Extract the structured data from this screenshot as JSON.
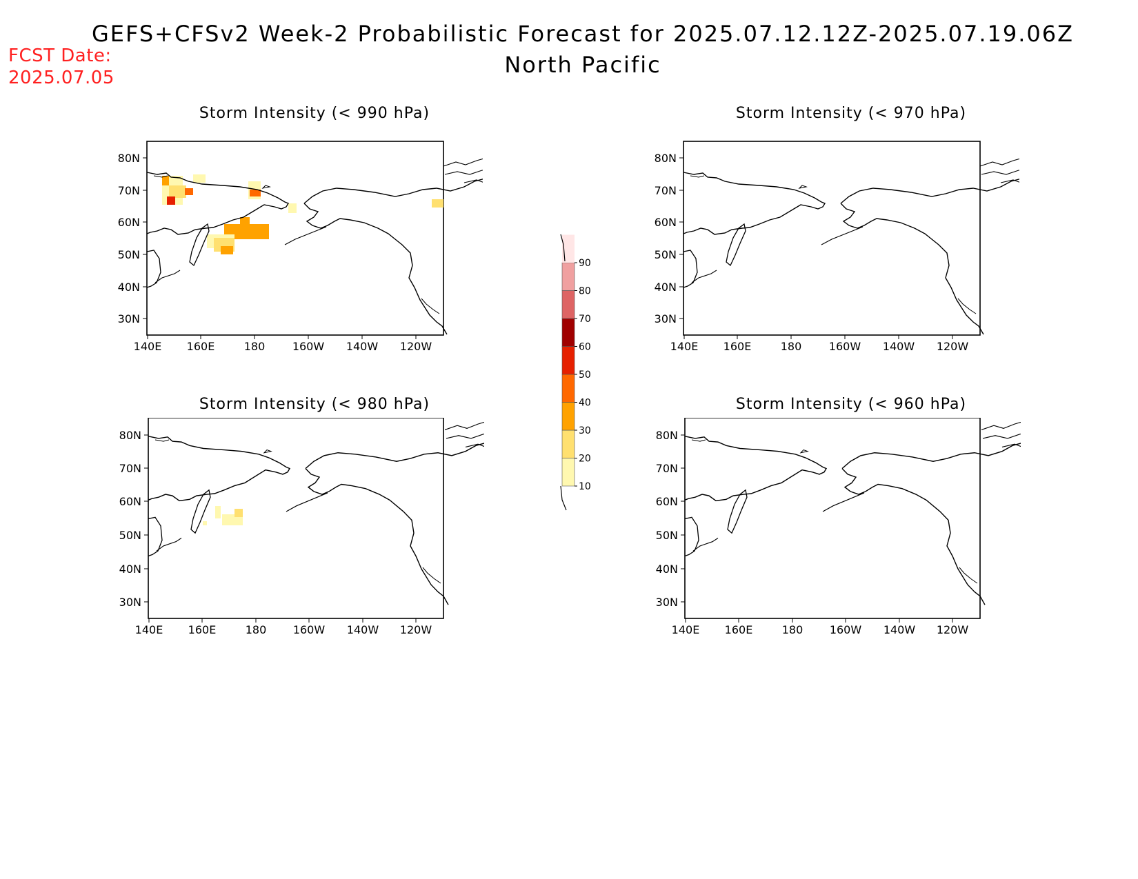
{
  "header": {
    "title": "GEFS+CFSv2 Week-2 Probabilistic Forecast for 2025.07.12.12Z-2025.07.19.06Z",
    "region": "North Pacific",
    "fcst_label": "FCST Date:",
    "fcst_date": "2025.07.05"
  },
  "axes": {
    "lat_ticks": [
      "80N",
      "70N",
      "60N",
      "50N",
      "40N",
      "30N"
    ],
    "lon_ticks": [
      "140E",
      "160E",
      "180",
      "160W",
      "140W",
      "120W"
    ]
  },
  "panels": [
    {
      "id": "p990",
      "title": "Storm Intensity (< 990 hPa)"
    },
    {
      "id": "p970",
      "title": "Storm Intensity (< 970 hPa)"
    },
    {
      "id": "p980",
      "title": "Storm Intensity (< 980 hPa)"
    },
    {
      "id": "p960",
      "title": "Storm Intensity (< 960 hPa)"
    }
  ],
  "colorbar": {
    "levels": [
      "10",
      "20",
      "30",
      "40",
      "50",
      "60",
      "70",
      "80",
      "90"
    ],
    "colors": [
      "#fff8b0",
      "#ffe070",
      "#ffa200",
      "#ff6800",
      "#e62000",
      "#a00000",
      "#de6464",
      "#f0a0a0",
      "#ffe6e6"
    ]
  }
}
